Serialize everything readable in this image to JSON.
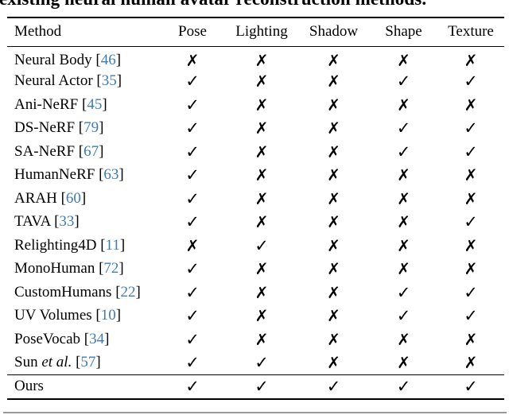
{
  "caption_partial": "existing neural human avatar reconstruction methods.",
  "colors": {
    "citation": "#3e7cb8",
    "rule": "#000000",
    "faint_line": "#999999"
  },
  "symbols": {
    "check": "✓",
    "cross": "✗",
    "cite_open": "[",
    "cite_close": "]"
  },
  "table": {
    "columns": [
      "Method",
      "Pose",
      "Lighting",
      "Shadow",
      "Shape",
      "Texture"
    ],
    "rows": [
      {
        "name": "Neural Body",
        "cite": "46",
        "etal": false,
        "marks": [
          false,
          false,
          false,
          false,
          false
        ]
      },
      {
        "name": "Neural Actor",
        "cite": "35",
        "etal": false,
        "marks": [
          true,
          false,
          false,
          true,
          true
        ]
      },
      {
        "name": "Ani-NeRF",
        "cite": "45",
        "etal": false,
        "marks": [
          true,
          false,
          false,
          false,
          false
        ]
      },
      {
        "name": "DS-NeRF",
        "cite": "79",
        "etal": false,
        "marks": [
          true,
          false,
          false,
          true,
          true
        ]
      },
      {
        "name": "SA-NeRF",
        "cite": "67",
        "etal": false,
        "marks": [
          true,
          false,
          false,
          true,
          true
        ]
      },
      {
        "name": "HumanNeRF",
        "cite": "63",
        "etal": false,
        "marks": [
          true,
          false,
          false,
          false,
          false
        ]
      },
      {
        "name": "ARAH",
        "cite": "60",
        "etal": false,
        "marks": [
          true,
          false,
          false,
          false,
          false
        ]
      },
      {
        "name": "TAVA",
        "cite": "33",
        "etal": false,
        "marks": [
          true,
          false,
          false,
          false,
          true
        ]
      },
      {
        "name": "Relighting4D",
        "cite": "11",
        "etal": false,
        "marks": [
          false,
          true,
          false,
          false,
          false
        ]
      },
      {
        "name": "MonoHuman",
        "cite": "72",
        "etal": false,
        "marks": [
          true,
          false,
          false,
          false,
          false
        ]
      },
      {
        "name": "CustomHumans",
        "cite": "22",
        "etal": false,
        "marks": [
          true,
          false,
          false,
          true,
          true
        ]
      },
      {
        "name": "UV Volumes",
        "cite": "10",
        "etal": false,
        "marks": [
          true,
          false,
          false,
          true,
          true
        ]
      },
      {
        "name": "PoseVocab",
        "cite": "34",
        "etal": false,
        "marks": [
          true,
          false,
          false,
          false,
          false
        ]
      },
      {
        "name": "Sun",
        "cite": "57",
        "etal": true,
        "etal_text": "et al.",
        "marks": [
          true,
          true,
          false,
          false,
          false
        ]
      }
    ],
    "ours": {
      "name": "Ours",
      "marks": [
        true,
        true,
        true,
        true,
        true
      ]
    }
  }
}
